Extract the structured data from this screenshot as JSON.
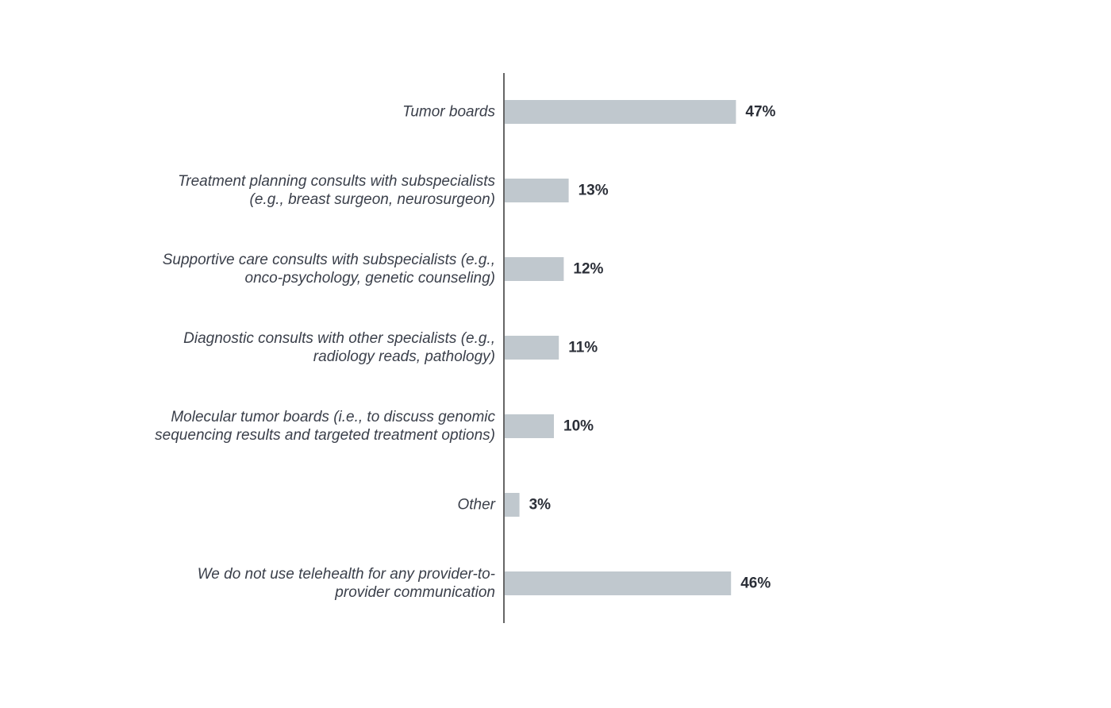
{
  "chart_data": {
    "type": "bar",
    "orientation": "horizontal",
    "categories": [
      [
        "Tumor boards"
      ],
      [
        "Treatment planning consults with subspecialists",
        "(e.g., breast surgeon, neurosurgeon)"
      ],
      [
        "Supportive care consults with subspecialists (e.g.,",
        "onco-psychology, genetic counseling)"
      ],
      [
        "Diagnostic consults with other specialists (e.g.,",
        "radiology reads, pathology)"
      ],
      [
        "Molecular tumor boards (i.e., to discuss genomic",
        "sequencing results and targeted treatment options)"
      ],
      [
        "Other"
      ],
      [
        "We do not use telehealth for any provider-to-",
        "provider communication"
      ]
    ],
    "values": [
      47,
      13,
      12,
      11,
      10,
      3,
      46
    ],
    "value_labels": [
      "47%",
      "13%",
      "12%",
      "11%",
      "10%",
      "3%",
      "46%"
    ],
    "title": "",
    "xlabel": "",
    "ylabel": "",
    "xlim": [
      0,
      100
    ],
    "grid": false,
    "legend": "none",
    "colors": {
      "bar": "#c0c8ce",
      "axis": "#333333",
      "category_text": "#3a3f4a",
      "value_text": "#2b2f38"
    }
  }
}
